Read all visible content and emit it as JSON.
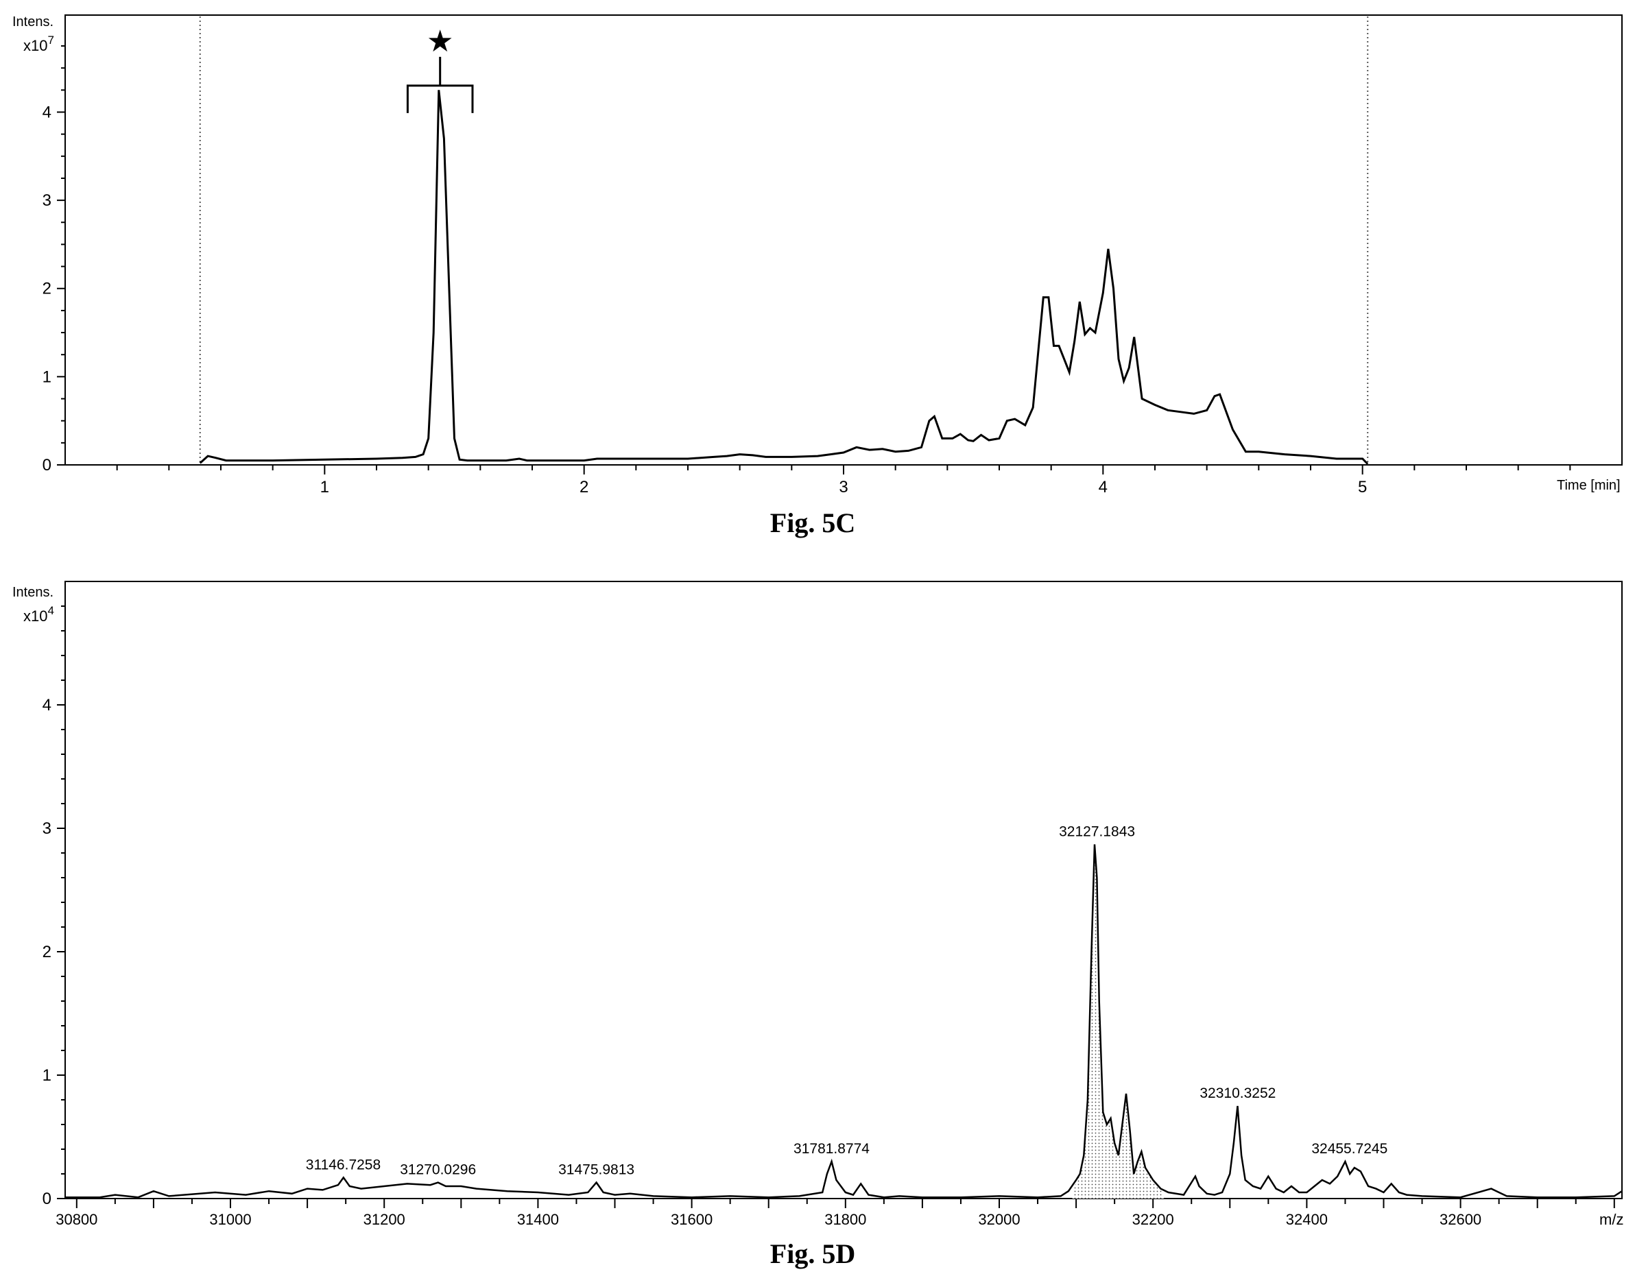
{
  "chart_data": [
    {
      "id": "fig5c",
      "type": "line",
      "caption": "Fig. 5C",
      "ylabel": "Intens.",
      "y_scale_base": "x10",
      "y_scale_exp": "7",
      "xlabel": "Time [min]",
      "xlim": [
        0.0,
        6.0
      ],
      "ylim": [
        0,
        5.1
      ],
      "x_ticks": [
        1,
        2,
        3,
        4,
        5
      ],
      "y_ticks": [
        0,
        1,
        2,
        3,
        4
      ],
      "marker": "★",
      "bracket_x": [
        1.32,
        1.57
      ],
      "bracket_y": 4.3,
      "dotted_lines_x": [
        0.52,
        5.02
      ],
      "line_color": "#000000",
      "x": [
        0.52,
        0.55,
        0.58,
        0.62,
        0.7,
        0.8,
        1.0,
        1.2,
        1.3,
        1.35,
        1.38,
        1.4,
        1.42,
        1.44,
        1.46,
        1.48,
        1.5,
        1.52,
        1.55,
        1.6,
        1.7,
        1.75,
        1.78,
        1.85,
        2.0,
        2.05,
        2.2,
        2.4,
        2.5,
        2.55,
        2.6,
        2.65,
        2.7,
        2.8,
        2.9,
        2.95,
        3.0,
        3.05,
        3.1,
        3.15,
        3.2,
        3.25,
        3.3,
        3.33,
        3.35,
        3.38,
        3.42,
        3.45,
        3.48,
        3.5,
        3.53,
        3.56,
        3.6,
        3.63,
        3.66,
        3.7,
        3.73,
        3.77,
        3.79,
        3.81,
        3.83,
        3.85,
        3.87,
        3.89,
        3.91,
        3.93,
        3.95,
        3.97,
        4.0,
        4.02,
        4.04,
        4.06,
        4.08,
        4.1,
        4.12,
        4.15,
        4.2,
        4.25,
        4.3,
        4.35,
        4.4,
        4.43,
        4.45,
        4.5,
        4.55,
        4.6,
        4.7,
        4.8,
        4.9,
        5.0,
        5.02
      ],
      "y": [
        0.02,
        0.1,
        0.08,
        0.05,
        0.05,
        0.05,
        0.06,
        0.07,
        0.08,
        0.09,
        0.12,
        0.3,
        1.5,
        4.25,
        3.7,
        2.0,
        0.3,
        0.06,
        0.05,
        0.05,
        0.05,
        0.07,
        0.05,
        0.05,
        0.05,
        0.07,
        0.07,
        0.07,
        0.09,
        0.1,
        0.12,
        0.11,
        0.09,
        0.09,
        0.1,
        0.12,
        0.14,
        0.2,
        0.17,
        0.18,
        0.15,
        0.16,
        0.2,
        0.5,
        0.55,
        0.3,
        0.3,
        0.35,
        0.28,
        0.27,
        0.34,
        0.28,
        0.3,
        0.5,
        0.52,
        0.45,
        0.65,
        1.9,
        1.9,
        1.35,
        1.35,
        1.2,
        1.05,
        1.4,
        1.85,
        1.48,
        1.55,
        1.5,
        1.95,
        2.45,
        2.0,
        1.2,
        0.95,
        1.1,
        1.45,
        0.75,
        0.68,
        0.62,
        0.6,
        0.58,
        0.62,
        0.78,
        0.8,
        0.4,
        0.15,
        0.15,
        0.12,
        0.1,
        0.07,
        0.07,
        0.01
      ]
    },
    {
      "id": "fig5d",
      "type": "line",
      "caption": "Fig. 5D",
      "ylabel": "Intens.",
      "y_scale_base": "x10",
      "y_scale_exp": "4",
      "xlabel": "m/z",
      "xlim": [
        30785,
        32810
      ],
      "ylim": [
        0,
        5.0
      ],
      "x_ticks": [
        30800,
        31000,
        31200,
        31400,
        31600,
        31800,
        32000,
        32200,
        32400,
        32600
      ],
      "y_ticks": [
        0,
        1,
        2,
        3,
        4
      ],
      "fill_pattern": "stippled",
      "line_color": "#000000",
      "peak_labels": [
        {
          "text": "31146.7258",
          "x": 31146.7,
          "y": 0.17
        },
        {
          "text": "31270.0296",
          "x": 31270.0,
          "y": 0.13
        },
        {
          "text": "31475.9813",
          "x": 31476.0,
          "y": 0.13
        },
        {
          "text": "31781.8774",
          "x": 31781.9,
          "y": 0.3
        },
        {
          "text": "32127.1843",
          "x": 32127.2,
          "y": 2.87
        },
        {
          "text": "32310.3252",
          "x": 32310.3,
          "y": 0.75
        },
        {
          "text": "32455.7245",
          "x": 32455.7,
          "y": 0.3
        }
      ],
      "x": [
        30785,
        30830,
        30850,
        30880,
        30900,
        30920,
        30980,
        31020,
        31050,
        31080,
        31100,
        31120,
        31140,
        31147,
        31155,
        31170,
        31200,
        31230,
        31260,
        31270,
        31280,
        31300,
        31320,
        31360,
        31400,
        31440,
        31465,
        31476,
        31485,
        31500,
        31520,
        31550,
        31600,
        31650,
        31700,
        31740,
        31770,
        31776,
        31782,
        31788,
        31800,
        31810,
        31820,
        31830,
        31850,
        31870,
        31900,
        31950,
        32000,
        32050,
        32080,
        32090,
        32100,
        32105,
        32110,
        32115,
        32120,
        32124,
        32127,
        32130,
        32135,
        32140,
        32145,
        32150,
        32155,
        32160,
        32165,
        32170,
        32175,
        32180,
        32185,
        32190,
        32195,
        32200,
        32210,
        32220,
        32240,
        32255,
        32260,
        32270,
        32280,
        32290,
        32300,
        32305,
        32310,
        32315,
        32320,
        32330,
        32340,
        32350,
        32360,
        32370,
        32380,
        32390,
        32400,
        32410,
        32420,
        32430,
        32440,
        32450,
        32456,
        32462,
        32470,
        32480,
        32490,
        32500,
        32510,
        32520,
        32530,
        32550,
        32600,
        32640,
        32650,
        32660,
        32700,
        32750,
        32800,
        32810
      ],
      "y": [
        0.01,
        0.01,
        0.03,
        0.01,
        0.06,
        0.02,
        0.05,
        0.03,
        0.06,
        0.04,
        0.08,
        0.07,
        0.11,
        0.17,
        0.1,
        0.08,
        0.1,
        0.12,
        0.11,
        0.13,
        0.1,
        0.1,
        0.08,
        0.06,
        0.05,
        0.03,
        0.05,
        0.13,
        0.05,
        0.03,
        0.04,
        0.02,
        0.01,
        0.02,
        0.01,
        0.02,
        0.05,
        0.2,
        0.3,
        0.15,
        0.05,
        0.03,
        0.12,
        0.03,
        0.01,
        0.02,
        0.01,
        0.01,
        0.02,
        0.01,
        0.02,
        0.06,
        0.15,
        0.2,
        0.35,
        0.8,
        2.0,
        2.87,
        2.6,
        1.6,
        0.7,
        0.6,
        0.65,
        0.45,
        0.35,
        0.6,
        0.85,
        0.55,
        0.2,
        0.3,
        0.38,
        0.25,
        0.2,
        0.15,
        0.08,
        0.05,
        0.03,
        0.18,
        0.1,
        0.04,
        0.03,
        0.05,
        0.2,
        0.45,
        0.75,
        0.35,
        0.15,
        0.1,
        0.08,
        0.18,
        0.08,
        0.05,
        0.1,
        0.05,
        0.05,
        0.1,
        0.15,
        0.12,
        0.18,
        0.3,
        0.2,
        0.25,
        0.22,
        0.1,
        0.08,
        0.05,
        0.12,
        0.05,
        0.03,
        0.02,
        0.01,
        0.08,
        0.05,
        0.02,
        0.01,
        0.01,
        0.02,
        0.06
      ]
    }
  ]
}
